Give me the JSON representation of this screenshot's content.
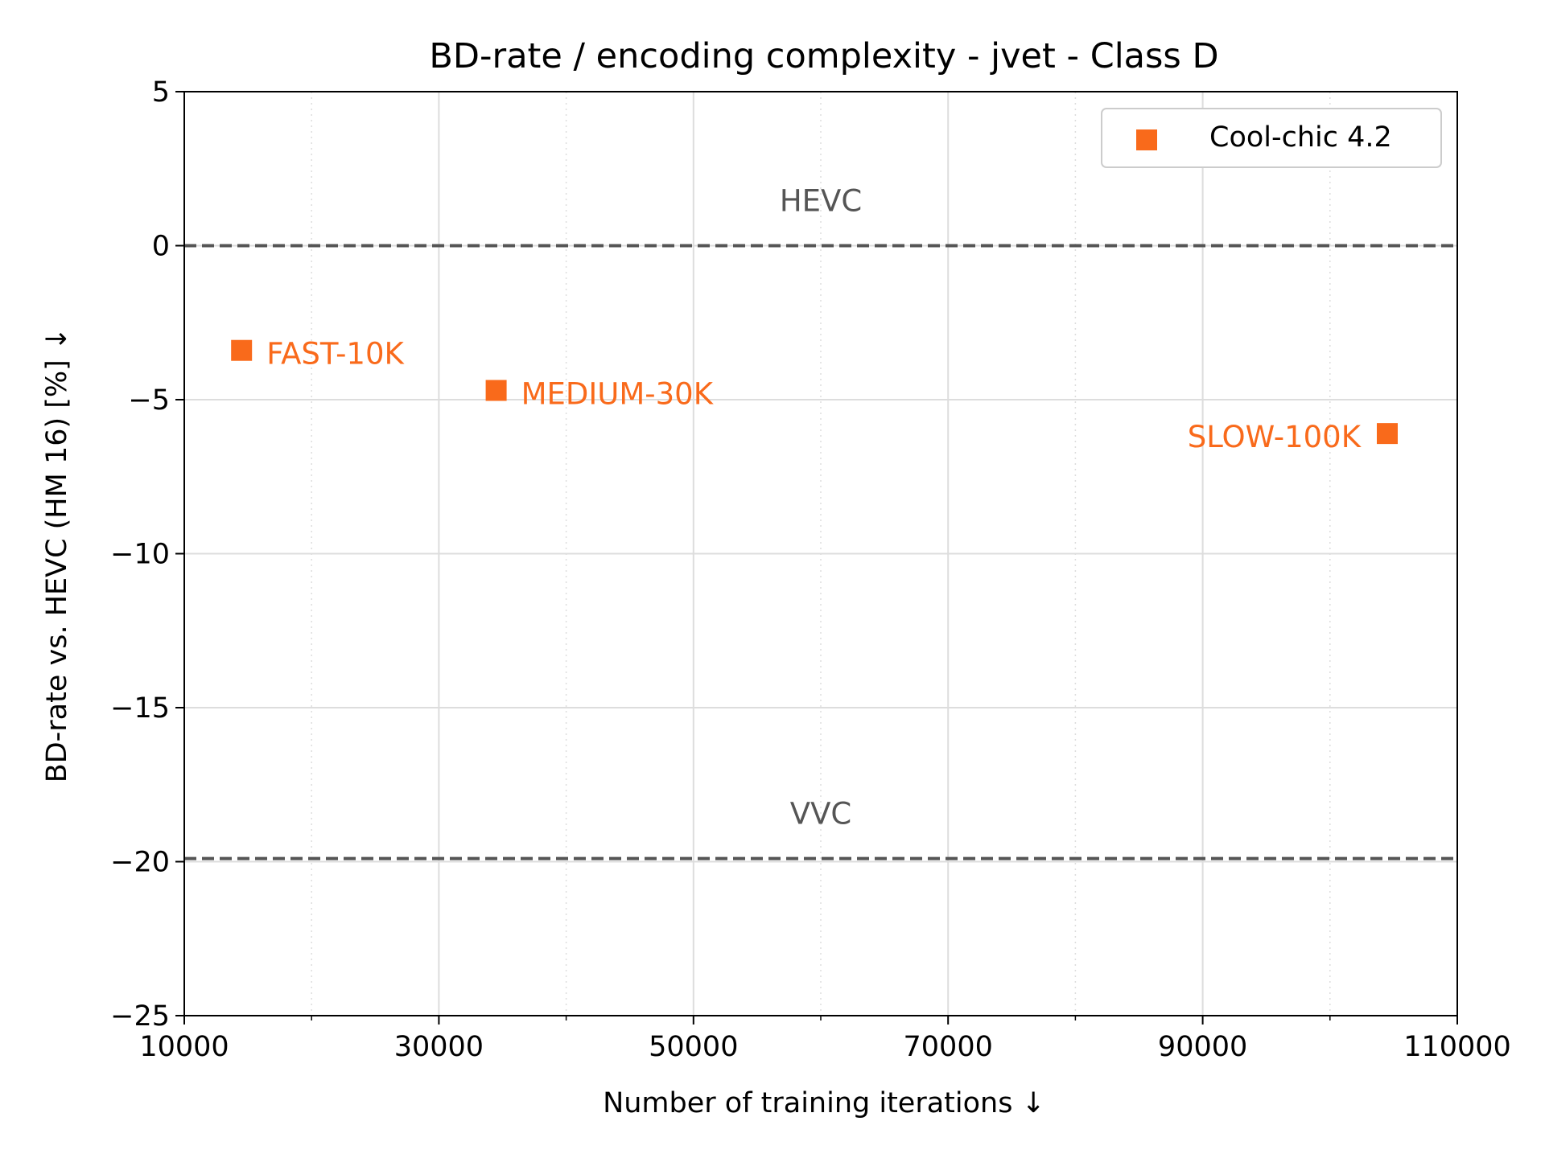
{
  "chart_data": {
    "type": "scatter",
    "title": "BD-rate / encoding complexity  - jvet - Class D",
    "xlabel": "Number of training iterations ↓",
    "ylabel": "BD-rate vs. HEVC (HM 16) [%]  ↓",
    "xlim": [
      10000,
      110000
    ],
    "ylim": [
      -25,
      5
    ],
    "x_ticks": [
      10000,
      30000,
      50000,
      70000,
      90000,
      110000
    ],
    "x_tick_labels": [
      "10000",
      "30000",
      "50000",
      "70000",
      "90000",
      "110000"
    ],
    "x_minor_ticks": [
      20000,
      40000,
      60000,
      80000,
      100000
    ],
    "y_ticks": [
      5,
      0,
      -5,
      -10,
      -15,
      -20,
      -25
    ],
    "y_tick_labels": [
      "5",
      "0",
      "−5",
      "−10",
      "−15",
      "−20",
      "−25"
    ],
    "grid": true,
    "legend": {
      "placement": "top-right"
    },
    "colors": {
      "series": "#f96a1b",
      "reference": "#555555",
      "grid": "#dddddd"
    },
    "series": [
      {
        "name": "Cool-chic 4.2",
        "marker": "square",
        "points": [
          {
            "x": 14500,
            "y": -3.4,
            "label": "FAST-10K",
            "label_side": "right"
          },
          {
            "x": 34500,
            "y": -4.7,
            "label": "MEDIUM-30K",
            "label_side": "right"
          },
          {
            "x": 104500,
            "y": -6.1,
            "label": "SLOW-100K",
            "label_side": "left"
          }
        ]
      }
    ],
    "reference_lines": [
      {
        "label": "HEVC",
        "y": 0
      },
      {
        "label": "VVC",
        "y": -19.9
      }
    ]
  }
}
